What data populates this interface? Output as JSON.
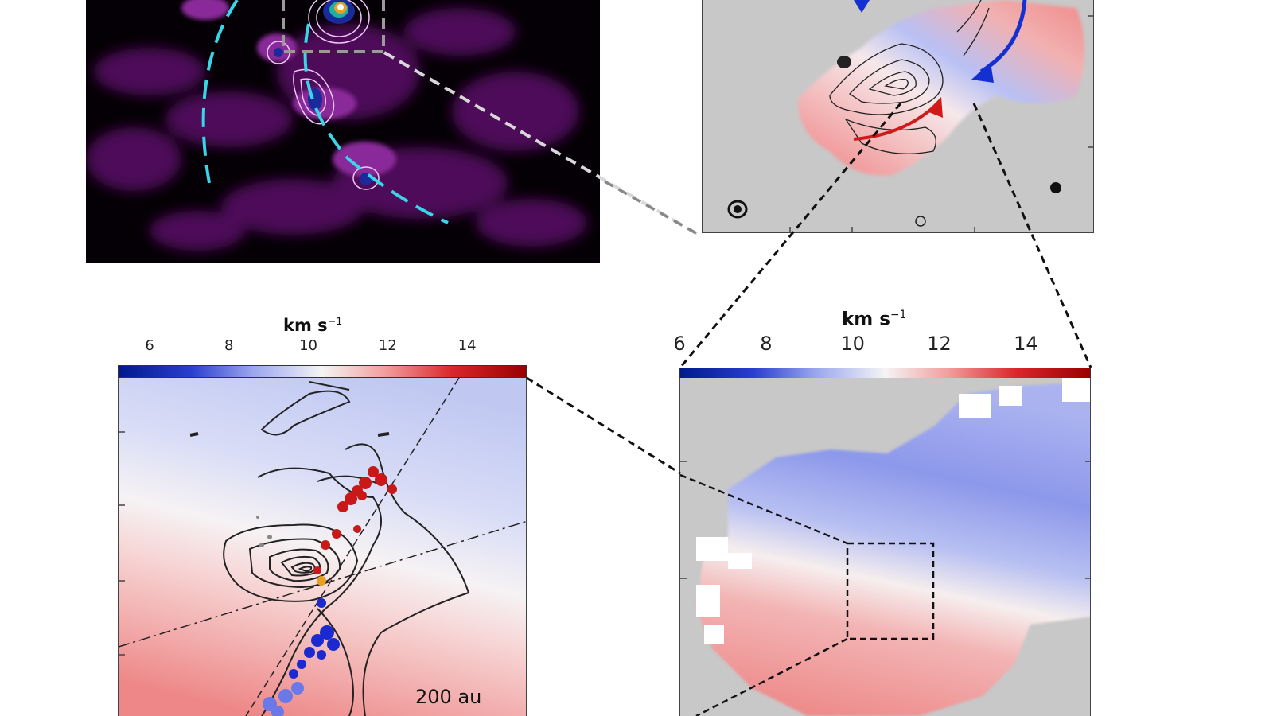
{
  "colorbar_left": {
    "title": "km s",
    "title_exponent": "−1",
    "ticks": [
      "6",
      "8",
      "10",
      "12",
      "14"
    ],
    "range": [
      5.2,
      15.5
    ]
  },
  "colorbar_right": {
    "title": "km s",
    "title_exponent": "−1",
    "ticks": [
      "6",
      "8",
      "10",
      "12",
      "14"
    ],
    "range": [
      6,
      15.5
    ]
  },
  "scale_bar": {
    "label": "200 au"
  },
  "colors": {
    "blue": "#2a3fd0",
    "red": "#d9262b",
    "cyan_dash": "#38d6e6",
    "purple": "#6a1a7a",
    "grey_bg": "#c8c8c8"
  }
}
